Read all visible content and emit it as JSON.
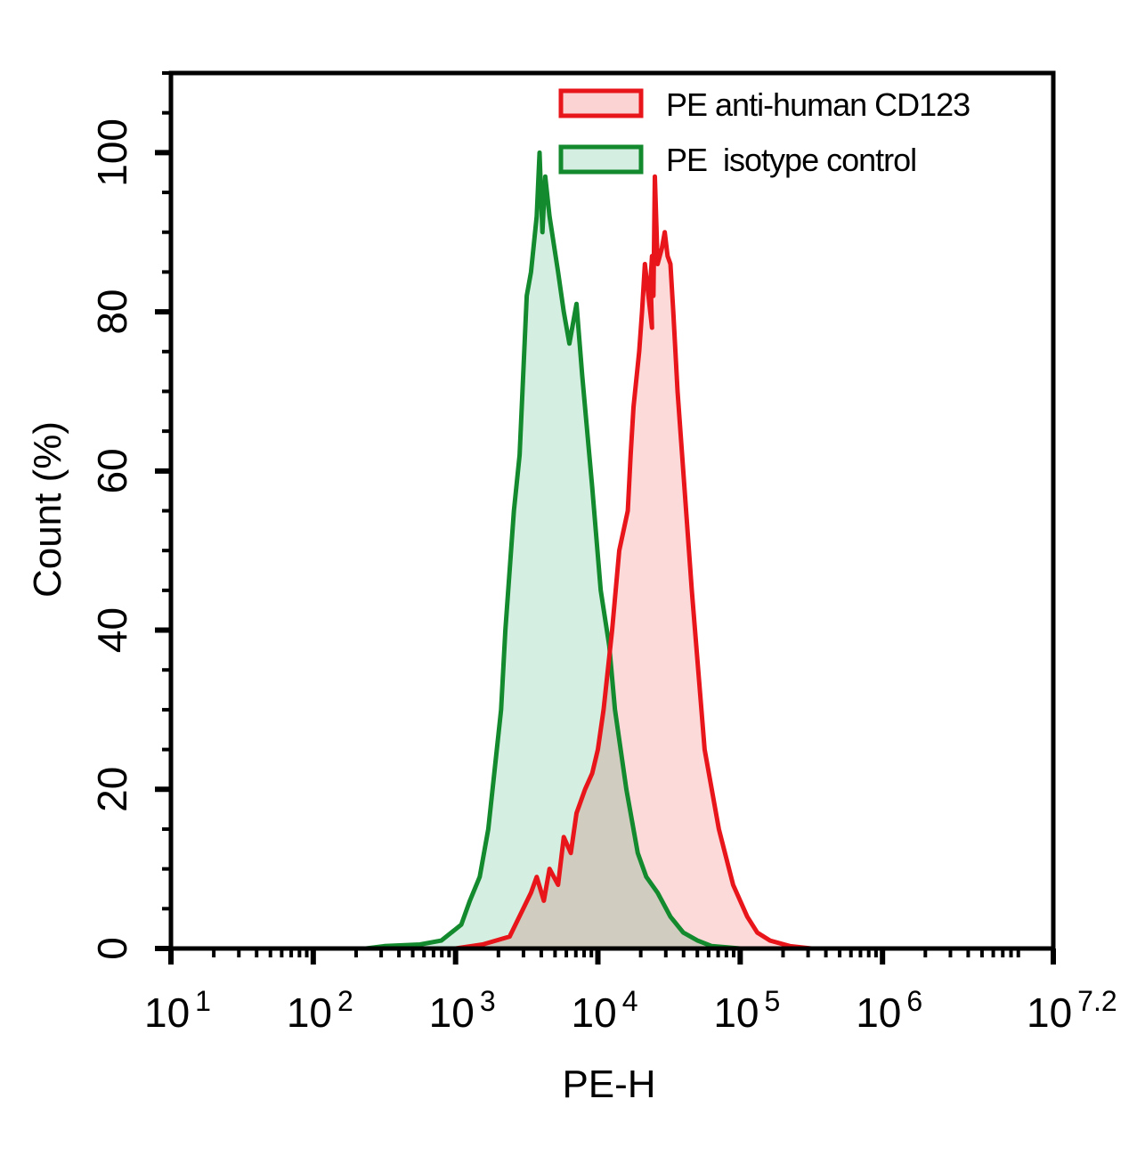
{
  "chart_data": {
    "type": "area",
    "title": "",
    "xlabel": "PE-H",
    "ylabel": "Count  (%)",
    "xscale": "log10",
    "xlim_log10": [
      1,
      7.2
    ],
    "ylim": [
      0,
      110
    ],
    "x_ticks": [
      {
        "base": "10",
        "exp": "1",
        "log": 1
      },
      {
        "base": "10",
        "exp": "2",
        "log": 2
      },
      {
        "base": "10",
        "exp": "3",
        "log": 3
      },
      {
        "base": "10",
        "exp": "4",
        "log": 4
      },
      {
        "base": "10",
        "exp": "5",
        "log": 5
      },
      {
        "base": "10",
        "exp": "6",
        "log": 6
      },
      {
        "base": "10",
        "exp": "7.2",
        "log": 7.2
      }
    ],
    "y_ticks": [
      0,
      20,
      40,
      60,
      80,
      100
    ],
    "grid": false,
    "legend_position": "top-right",
    "series": [
      {
        "name": "PE anti-human CD123",
        "stroke": "#e8161b",
        "fill": "#fbd3d3",
        "x_log10": [
          3.0,
          3.19,
          3.38,
          3.53,
          3.57,
          3.62,
          3.66,
          3.72,
          3.76,
          3.81,
          3.85,
          3.91,
          3.96,
          4.0,
          4.04,
          4.1,
          4.15,
          4.21,
          4.23,
          4.25,
          4.29,
          4.31,
          4.33,
          4.38,
          4.37,
          4.38,
          4.39,
          4.4,
          4.42,
          4.45,
          4.47,
          4.49,
          4.51,
          4.53,
          4.56,
          4.6,
          4.66,
          4.75,
          4.85,
          4.95,
          5.05,
          5.12,
          5.21,
          5.35,
          5.5
        ],
        "values": [
          0,
          0.5,
          1.5,
          7,
          9,
          6,
          10,
          8,
          14,
          12,
          17,
          20,
          22,
          25,
          30,
          40,
          50,
          55,
          62,
          68,
          75,
          80,
          86,
          78,
          84,
          87,
          82,
          97,
          86,
          88,
          90,
          87,
          86,
          80,
          70,
          60,
          45,
          25,
          15,
          8,
          4,
          2,
          1,
          0.3,
          0
        ],
        "peak_x_log10": 4.4,
        "peak_value": 97
      },
      {
        "name": "PE  isotype control",
        "stroke": "#138a2d",
        "fill": "#d4efe1",
        "x_log10": [
          2.37,
          2.5,
          2.75,
          2.9,
          3.04,
          3.1,
          3.17,
          3.23,
          3.26,
          3.32,
          3.35,
          3.41,
          3.45,
          3.47,
          3.5,
          3.53,
          3.57,
          3.59,
          3.61,
          3.63,
          3.66,
          3.72,
          3.76,
          3.8,
          3.85,
          3.89,
          3.92,
          3.96,
          4.02,
          4.08,
          4.12,
          4.2,
          4.28,
          4.34,
          4.42,
          4.51,
          4.6,
          4.7,
          4.8,
          5.0
        ],
        "values": [
          0,
          0.3,
          0.5,
          1,
          3,
          6,
          9,
          15,
          20,
          30,
          40,
          55,
          62,
          70,
          82,
          85,
          92,
          100,
          90,
          97,
          92,
          85,
          80,
          76,
          81,
          72,
          66,
          58,
          45,
          38,
          30,
          20,
          12,
          9,
          7,
          4,
          2,
          1,
          0.3,
          0
        ],
        "peak_x_log10": 3.59,
        "peak_value": 100
      }
    ]
  }
}
